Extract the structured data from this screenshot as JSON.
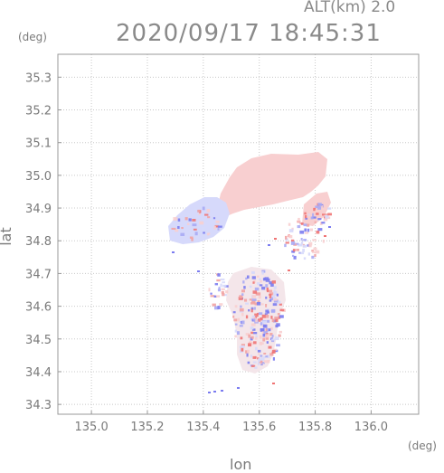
{
  "header": {
    "alt_label": "ALT(km) 2.0",
    "datetime": "2020/09/17 18:45:31"
  },
  "axes": {
    "y_unit": "(deg)",
    "x_unit": "(deg)",
    "x_label": "lon",
    "y_label": "lat",
    "x_ticks": [
      "135.0",
      "135.2",
      "135.4",
      "135.6",
      "135.8",
      "136.0"
    ],
    "y_ticks": [
      "35.3",
      "35.2",
      "35.1",
      "35.0",
      "34.9",
      "34.8",
      "34.7",
      "34.6",
      "34.5",
      "34.4",
      "34.3"
    ]
  },
  "map": {
    "lon_range": [
      134.88,
      136.17
    ],
    "lat_range": [
      34.27,
      35.37
    ],
    "grid": true,
    "colors": {
      "frame": "#999999",
      "grid": "#c8c8c8",
      "approach": "#d6d9fb",
      "recede": "#f8cfd0",
      "strong_approach": "#7b7cf0",
      "strong_recede": "#f07474"
    }
  }
}
